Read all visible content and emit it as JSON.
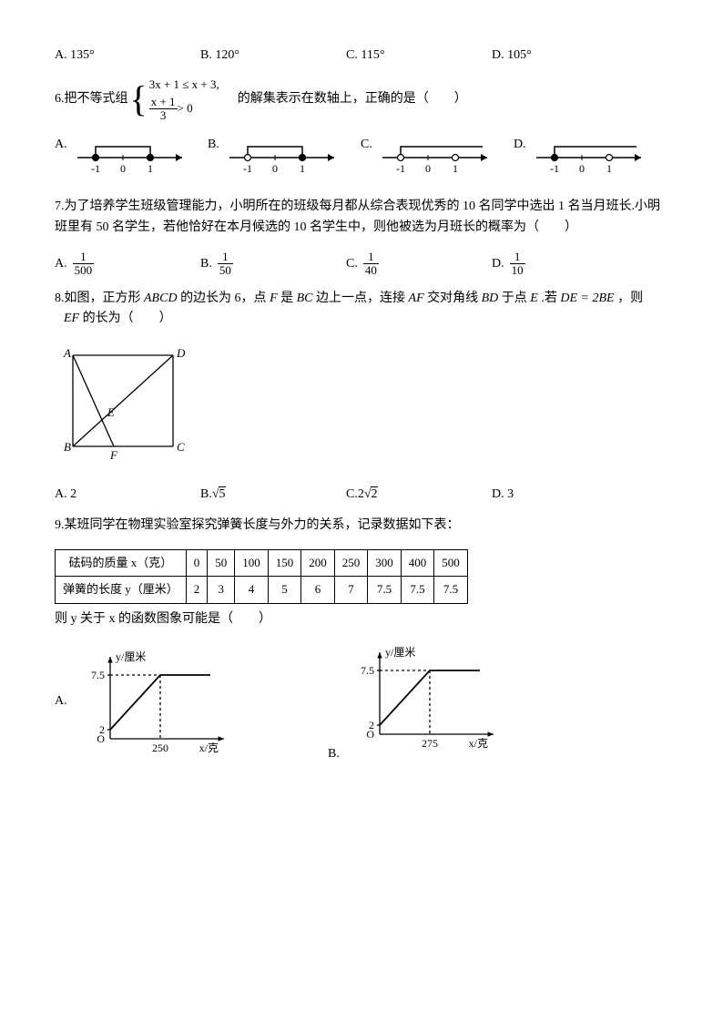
{
  "q5": {
    "opts": [
      "A. 135°",
      "B. 120°",
      "C. 115°",
      "D. 105°"
    ]
  },
  "q6": {
    "prefix": "6.把不等式组",
    "ineq_top": "3x + 1 ≤ x + 3,",
    "frac_num": "x + 1",
    "frac_den": "3",
    "frac_tail": " > 0",
    "suffix": "的解集表示在数轴上，正确的是（　　）",
    "opts": [
      "A.",
      "B.",
      "C.",
      "D."
    ],
    "numline": {
      "labels": [
        "-1",
        "0",
        "1"
      ],
      "line_color": "#000000"
    },
    "variants": [
      {
        "leftFilled": true,
        "rightFilled": true,
        "spanStart": -1,
        "spanEnd": 1,
        "rayLeft": false,
        "rayRight": false
      },
      {
        "leftFilled": false,
        "rightFilled": true,
        "spanStart": -1,
        "spanEnd": 1,
        "rayLeft": false,
        "rayRight": false
      },
      {
        "leftFilled": false,
        "rightFilled": false,
        "spanStart": -1,
        "spanEnd": 1,
        "rayLeft": false,
        "rayRight": true
      },
      {
        "leftFilled": true,
        "rightFilled": false,
        "spanStart": -1,
        "spanEnd": 1,
        "rayLeft": false,
        "rayRight": true
      }
    ]
  },
  "q7": {
    "line1": "7.为了培养学生班级管理能力，小明所在的班级每月都从综合表现优秀的 10 名同学中选出 1 名当月班长.小明",
    "line2": "班里有 50 名学生，若他恰好在本月候选的 10 名学生中，则他被选为月班长的概率为（　　）",
    "opts": [
      "A.",
      "B.",
      "C.",
      "D."
    ],
    "fracs": [
      [
        "1",
        "500"
      ],
      [
        "1",
        "50"
      ],
      [
        "1",
        "40"
      ],
      [
        "1",
        "10"
      ]
    ]
  },
  "q8": {
    "line1_a": "8.如图，正方形 ",
    "line1_b": " 的边长为 6，点 ",
    "line1_c": " 是 ",
    "line1_d": " 边上一点，连接 ",
    "line1_e": " 交对角线 ",
    "line1_f": " 于点 ",
    "line1_g": ".若 ",
    "line1_h": "，则",
    "labels": {
      "ABCD": "ABCD",
      "F": "F",
      "BC": "BC",
      "AF": "AF",
      "BD": "BD",
      "E": "E",
      "DE2BE": "DE = 2BE"
    },
    "line2_a": "",
    "line2_b": " 的长为（　　）",
    "EF": "EF",
    "opts": [
      "A. 2",
      "B. ",
      "C. ",
      "D. 3"
    ],
    "sqrt5": "√5",
    "twosqrt2_a": "2",
    "twosqrt2_b": "√2",
    "square": {
      "A": "A",
      "B": "B",
      "C": "C",
      "D": "D",
      "E": "E",
      "F": "F",
      "stroke": "#000000"
    }
  },
  "q9": {
    "text": "9.某班同学在物理实验室探究弹簧长度与外力的关系，记录数据如下表：",
    "header_x": "砝码的质量 x（克）",
    "header_y": "弹簧的长度 y（厘米）",
    "x": [
      "0",
      "50",
      "100",
      "150",
      "200",
      "250",
      "300",
      "400",
      "500"
    ],
    "y": [
      "2",
      "3",
      "4",
      "5",
      "6",
      "7",
      "7.5",
      "7.5",
      "7.5"
    ],
    "post": "则 y 关于 x 的函数图象可能是（　　）",
    "opts": [
      "A.",
      "B."
    ],
    "chart": {
      "ylab": "y/厘米",
      "xlab": "x/克",
      "ymax_label": "7.5",
      "ymin_label": "2",
      "x_break_a": "250",
      "x_break_b": "275",
      "stroke": "#000000"
    }
  }
}
